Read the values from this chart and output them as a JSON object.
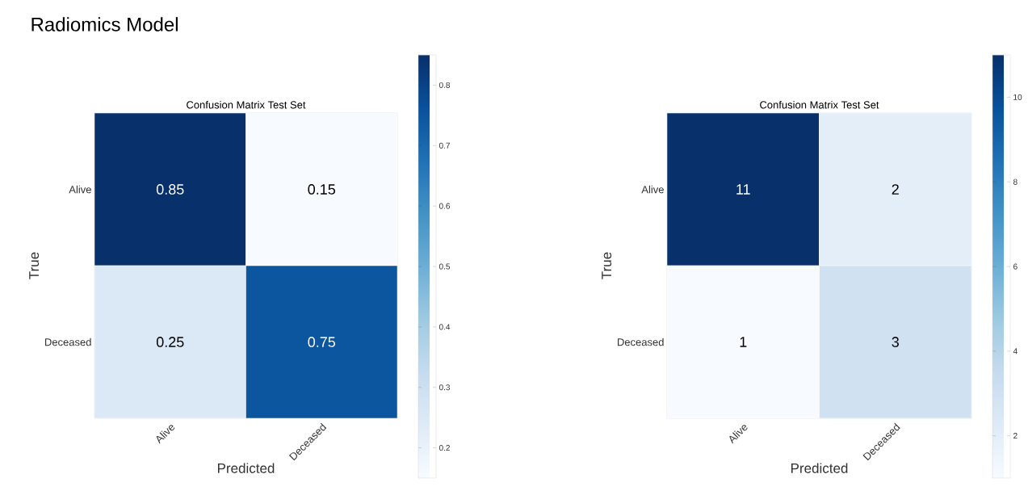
{
  "chart_data": [
    {
      "type": "heatmap",
      "title": "Confusion Matrix Test Set",
      "xlabel": "Predicted",
      "ylabel": "True",
      "annotations": [
        "Radiomics Model"
      ],
      "categories": [
        "Alive",
        "Deceased"
      ],
      "y_categories": [
        "Alive",
        "Deceased"
      ],
      "cells": [
        [
          0.85,
          0.15
        ],
        [
          0.25,
          0.75
        ]
      ],
      "data_labels": true,
      "clim": [
        0.15,
        0.85
      ],
      "cticks": [
        0.2,
        0.3,
        0.4,
        0.5,
        0.6,
        0.7,
        0.8
      ]
    },
    {
      "type": "heatmap",
      "title": "Confusion Matrix Test Set",
      "xlabel": "Predicted",
      "ylabel": "True",
      "categories": [
        "Alive",
        "Deceased"
      ],
      "y_categories": [
        "Alive",
        "Deceased"
      ],
      "cells": [
        [
          11,
          2
        ],
        [
          1,
          3
        ]
      ],
      "data_labels": true,
      "clim": [
        1,
        11
      ],
      "cticks": [
        2,
        4,
        6,
        8,
        10
      ]
    }
  ]
}
